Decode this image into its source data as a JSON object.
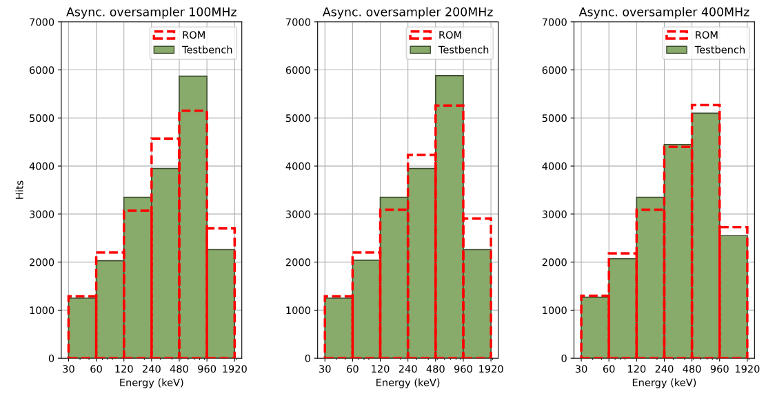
{
  "chart_data": [
    {
      "type": "histogram",
      "title": "Async. oversampler 100MHz",
      "xlabel": "Energy (keV)",
      "ylabel": "Hits",
      "bins": [
        30,
        60,
        120,
        240,
        480,
        960,
        1920
      ],
      "log": "x",
      "xlim": [
        25,
        2300
      ],
      "xticks": [
        30,
        60,
        120,
        240,
        480,
        960,
        1920
      ],
      "ylim": [
        0,
        7000
      ],
      "yticks": [
        0,
        1000,
        2000,
        3000,
        4000,
        5000,
        6000,
        7000
      ],
      "grid": true,
      "legend": "top right",
      "series": [
        {
          "name": "ROM",
          "line_style": "dashed",
          "color": "#ff0000",
          "values": [
            1290,
            2200,
            3070,
            4570,
            5150,
            2700
          ]
        },
        {
          "name": "Testbench",
          "color": "#88aa6a",
          "values": [
            1250,
            2030,
            3350,
            3950,
            5870,
            2260
          ]
        }
      ]
    },
    {
      "type": "histogram",
      "title": "Async. oversampler 200MHz",
      "xlabel": "Energy (keV)",
      "bins": [
        30,
        60,
        120,
        240,
        480,
        960,
        1920
      ],
      "log": "x",
      "xlim": [
        25,
        2300
      ],
      "xticks": [
        30,
        60,
        120,
        240,
        480,
        960,
        1920
      ],
      "ylim": [
        0,
        7000
      ],
      "yticks": [
        0,
        1000,
        2000,
        3000,
        4000,
        5000,
        6000,
        7000
      ],
      "grid": true,
      "legend": "top right",
      "series": [
        {
          "name": "ROM",
          "line_style": "dashed",
          "color": "#ff0000",
          "values": [
            1290,
            2200,
            3090,
            4230,
            5260,
            2910
          ]
        },
        {
          "name": "Testbench",
          "color": "#88aa6a",
          "values": [
            1250,
            2040,
            3350,
            3950,
            5880,
            2260
          ]
        }
      ]
    },
    {
      "type": "histogram",
      "title": "Async. oversampler 400MHz",
      "xlabel": "Energy (keV)",
      "bins": [
        30,
        60,
        120,
        240,
        480,
        960,
        1920
      ],
      "log": "x",
      "xlim": [
        25,
        2300
      ],
      "xticks": [
        30,
        60,
        120,
        240,
        480,
        960,
        1920
      ],
      "ylim": [
        0,
        7000
      ],
      "yticks": [
        0,
        1000,
        2000,
        3000,
        4000,
        5000,
        6000,
        7000
      ],
      "grid": true,
      "legend": "top right",
      "series": [
        {
          "name": "ROM",
          "line_style": "dashed",
          "color": "#ff0000",
          "values": [
            1300,
            2180,
            3090,
            4400,
            5270,
            2730
          ]
        },
        {
          "name": "Testbench",
          "color": "#88aa6a",
          "values": [
            1270,
            2070,
            3350,
            4450,
            5100,
            2550
          ]
        }
      ]
    }
  ]
}
